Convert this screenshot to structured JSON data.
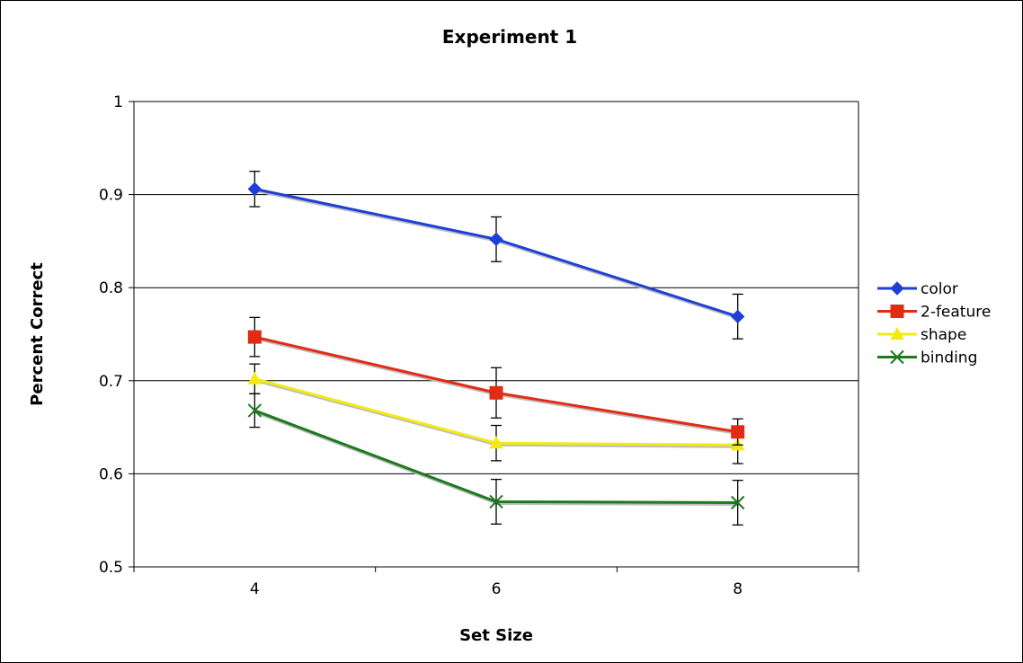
{
  "chart_data": {
    "type": "line",
    "title": "Experiment 1",
    "xlabel": "Set Size",
    "ylabel": "Percent Correct",
    "categories": [
      "4",
      "6",
      "8"
    ],
    "ylim": [
      0.5,
      1
    ],
    "yticks": [
      "0.5",
      "0.6",
      "0.7",
      "0.8",
      "0.9",
      "1"
    ],
    "grid": true,
    "legend_position": "right",
    "series": [
      {
        "name": "color",
        "color": "#1f3fd6",
        "marker": "diamond",
        "values": [
          0.906,
          0.852,
          0.769
        ],
        "errors": [
          0.019,
          0.024,
          0.024
        ]
      },
      {
        "name": "2-feature",
        "color": "#e32b14",
        "marker": "square",
        "values": [
          0.747,
          0.687,
          0.645
        ],
        "errors": [
          0.021,
          0.027,
          0.014
        ]
      },
      {
        "name": "shape",
        "color": "#f4ea12",
        "marker": "triangle",
        "values": [
          0.702,
          0.633,
          0.631
        ],
        "errors": [
          0.016,
          0.019,
          0.02
        ]
      },
      {
        "name": "binding",
        "color": "#1d7a1d",
        "marker": "x",
        "values": [
          0.668,
          0.57,
          0.569
        ],
        "errors": [
          0.018,
          0.024,
          0.024
        ]
      }
    ]
  }
}
